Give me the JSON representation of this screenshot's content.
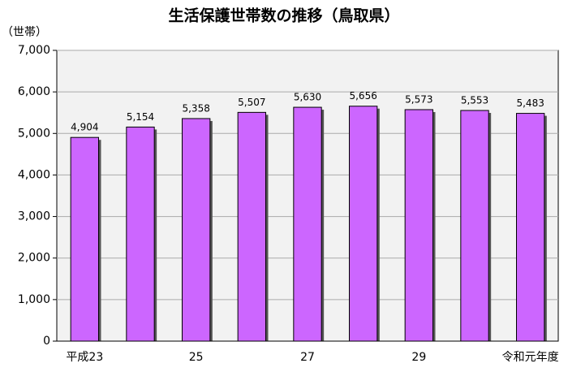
{
  "chart_data": {
    "type": "bar",
    "title": "生活保護世帯数の推移（鳥取県）",
    "y_label": "（世帯）",
    "categories": [
      "平成23",
      null,
      "25",
      null,
      "27",
      null,
      "29",
      null,
      "令和元年度"
    ],
    "values": [
      4904,
      5154,
      5358,
      5507,
      5630,
      5656,
      5573,
      5553,
      5483
    ],
    "value_labels": [
      "4,904",
      "5,154",
      "5,358",
      "5,507",
      "5,630",
      "5,656",
      "5,573",
      "5,553",
      "5,483"
    ],
    "color": "#cc66ff",
    "ylim": [
      0,
      7000
    ],
    "yticks": [
      0,
      {
        "value": 1000,
        "label": "1,000"
      },
      {
        "value": 2000,
        "label": "2,000"
      },
      {
        "value": 3000,
        "label": "3,000"
      },
      {
        "value": 4000,
        "label": "4,000"
      },
      {
        "value": 5000,
        "label": "5,000"
      },
      {
        "value": 6000,
        "label": "6,000"
      },
      {
        "value": 7000,
        "label": "7,000"
      }
    ],
    "grid": true
  }
}
